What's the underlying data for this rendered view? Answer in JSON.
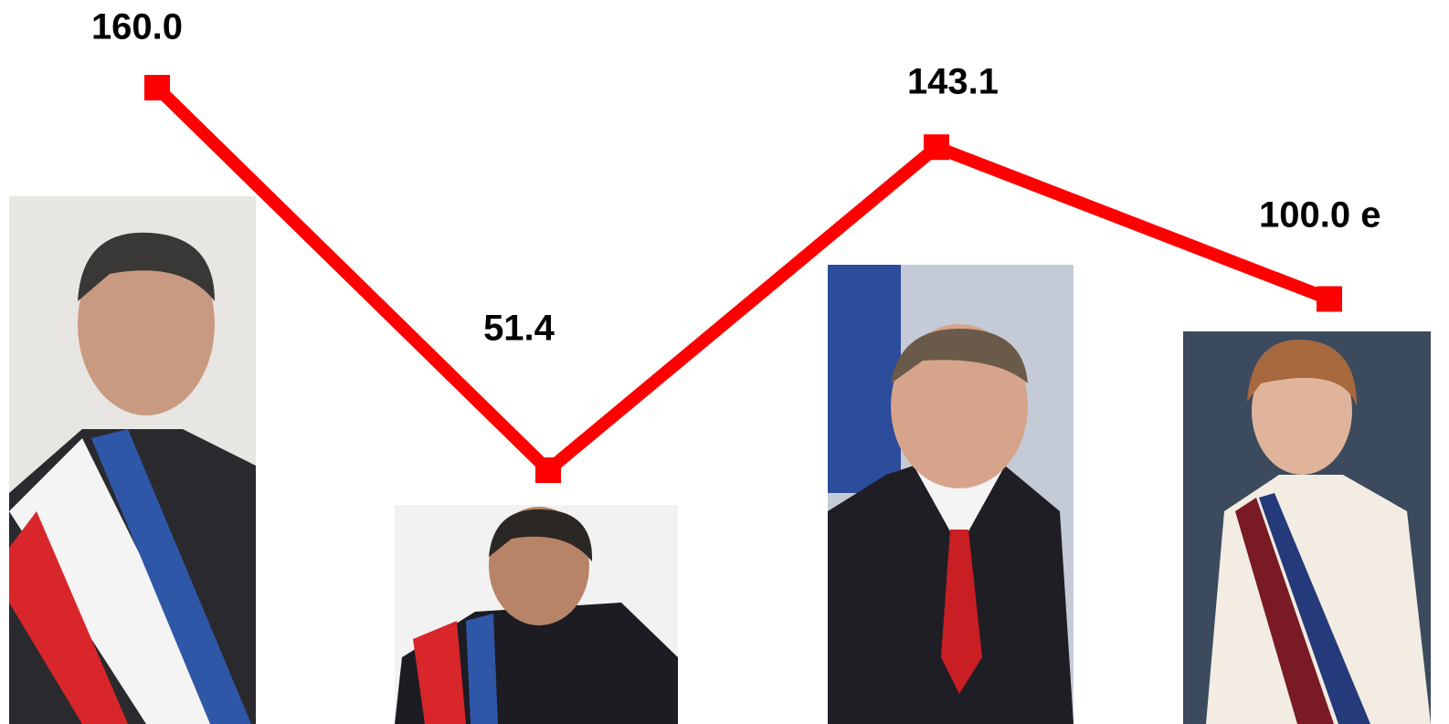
{
  "chart_data": {
    "type": "line",
    "categories": [
      null,
      null,
      null,
      null
    ],
    "values": [
      160.0,
      51.4,
      143.1,
      100.0
    ],
    "value_labels": [
      "160.0",
      "51.4",
      "143.1",
      "100.0 e"
    ],
    "color": "#ff0000"
  }
}
